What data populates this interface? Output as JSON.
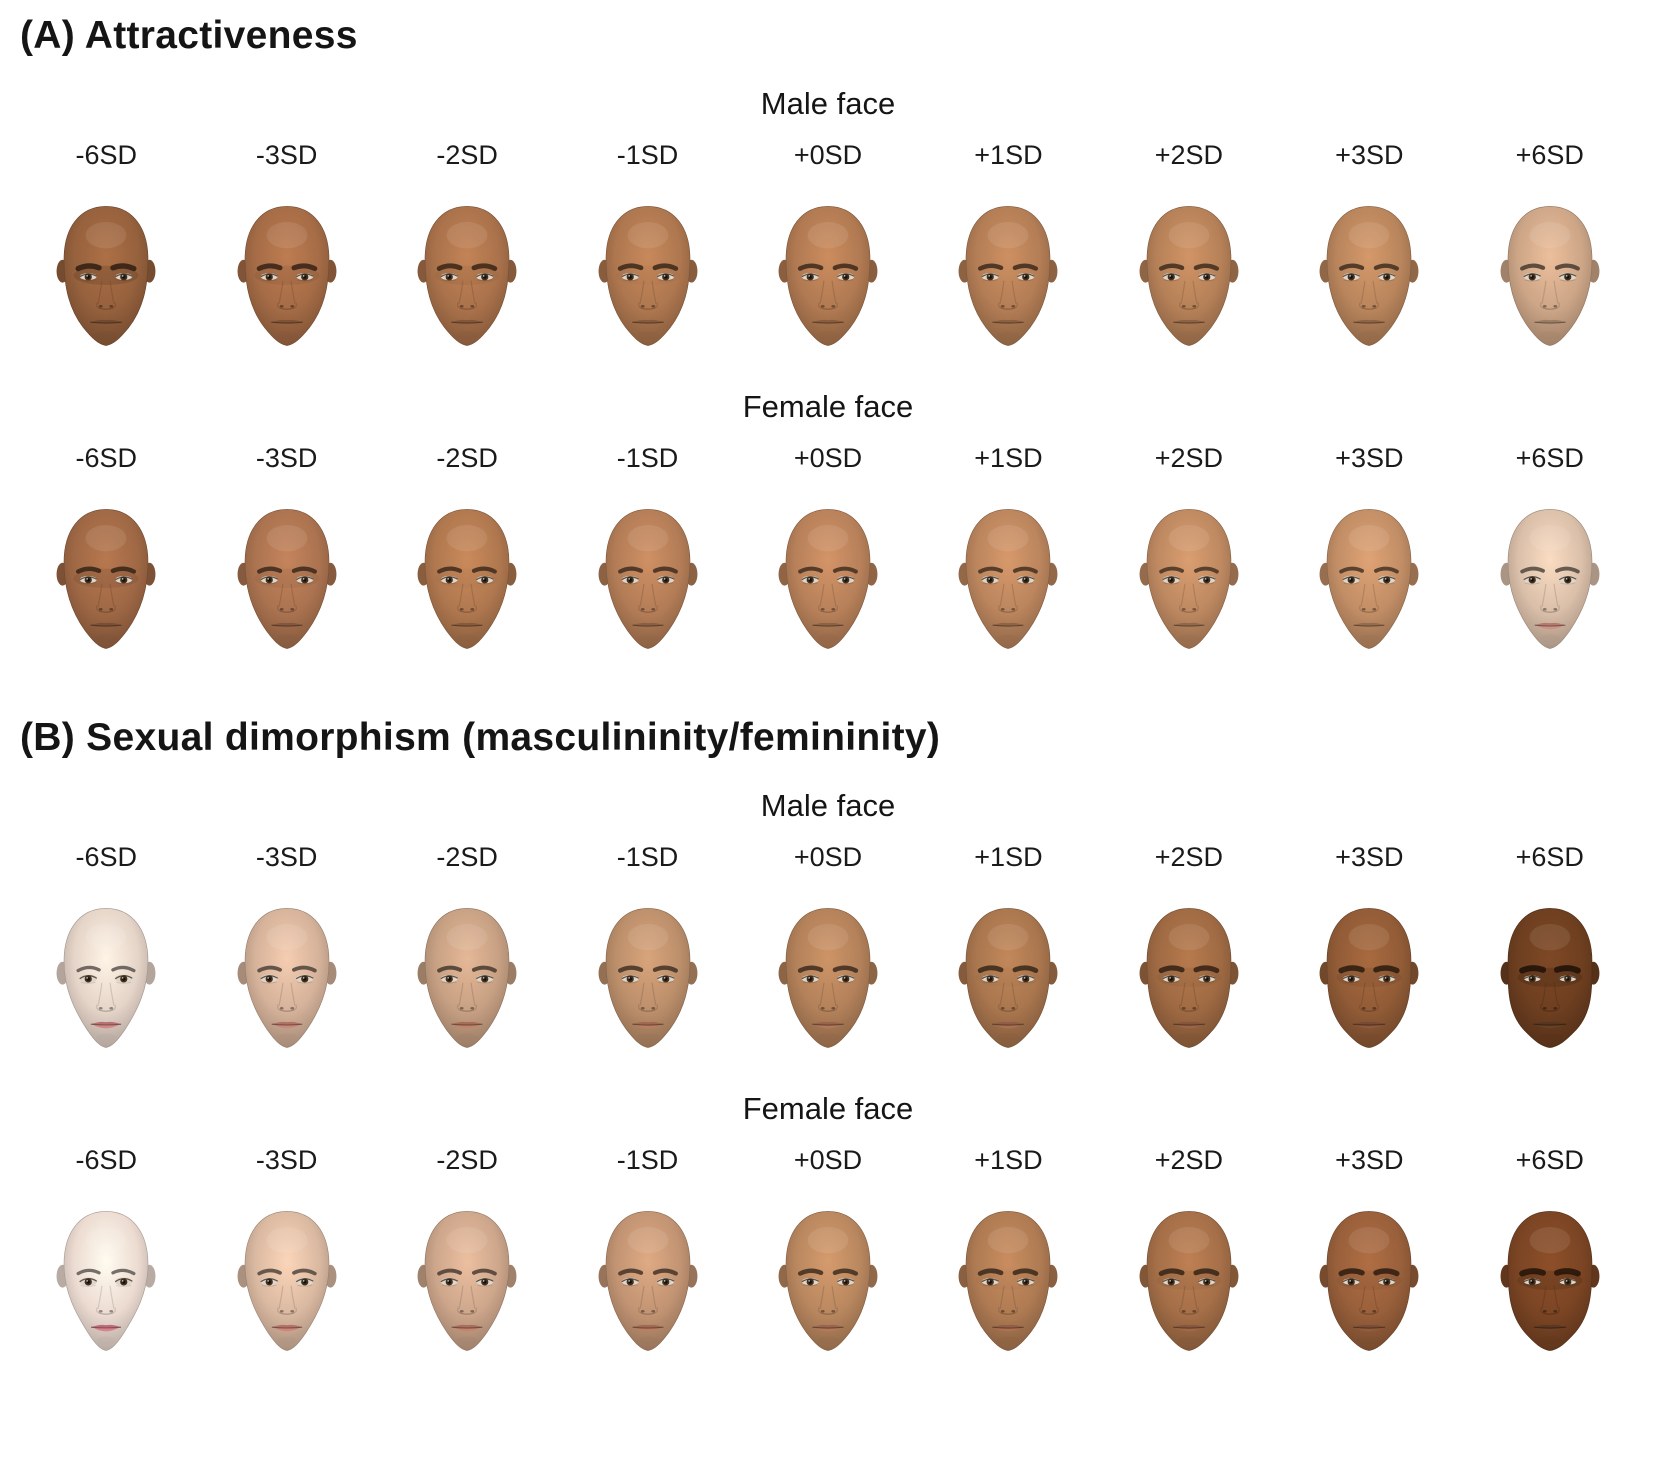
{
  "sd_labels": [
    "-6SD",
    "-3SD",
    "-2SD",
    "-1SD",
    "+0SD",
    "+1SD",
    "+2SD",
    "+3SD",
    "+6SD"
  ],
  "panels": [
    {
      "title": "(A) Attractiveness",
      "groups": [
        {
          "title": "Male face",
          "faces": [
            {
              "skin": "#96613d",
              "jaw": 1.05,
              "brow": 1.35,
              "eye": 0.95,
              "gloom": 0.3
            },
            {
              "skin": "#a56c46",
              "jaw": 1.04,
              "brow": 1.2,
              "eye": 0.97,
              "gloom": 0.15
            },
            {
              "skin": "#aa724b",
              "jaw": 1.04,
              "brow": 1.15,
              "eye": 0.98,
              "gloom": 0.1
            },
            {
              "skin": "#ae774f",
              "jaw": 1.03,
              "brow": 1.1,
              "eye": 1.0,
              "gloom": 0.05
            },
            {
              "skin": "#b17a52",
              "jaw": 1.03,
              "brow": 1.05,
              "eye": 1.0,
              "gloom": 0
            },
            {
              "skin": "#b37d55",
              "jaw": 1.02,
              "brow": 1.0,
              "eye": 1.0,
              "gloom": 0
            },
            {
              "skin": "#b68158",
              "jaw": 1.02,
              "brow": 1.0,
              "eye": 1.02,
              "gloom": 0
            },
            {
              "skin": "#b9855c",
              "jaw": 1.01,
              "brow": 0.95,
              "eye": 1.03,
              "gloom": 0
            },
            {
              "skin": "#cda687",
              "jaw": 0.99,
              "brow": 0.9,
              "eye": 1.06,
              "gloom": 0
            }
          ]
        },
        {
          "title": "Female face",
          "faces": [
            {
              "skin": "#9f6845",
              "jaw": 0.97,
              "brow": 1.0,
              "eye": 1.0,
              "gloom": 0.2
            },
            {
              "skin": "#ab7350",
              "jaw": 0.96,
              "brow": 0.95,
              "eye": 1.02,
              "gloom": 0.1
            },
            {
              "skin": "#b0784f",
              "jaw": 0.96,
              "brow": 0.9,
              "eye": 1.03,
              "gloom": 0.05
            },
            {
              "skin": "#b47d57",
              "jaw": 0.95,
              "brow": 0.9,
              "eye": 1.04,
              "gloom": 0
            },
            {
              "skin": "#b8815a",
              "jaw": 0.95,
              "brow": 0.85,
              "eye": 1.05,
              "gloom": 0
            },
            {
              "skin": "#bb855d",
              "jaw": 0.94,
              "brow": 0.85,
              "eye": 1.05,
              "gloom": 0
            },
            {
              "skin": "#be8961",
              "jaw": 0.94,
              "brow": 0.8,
              "eye": 1.06,
              "gloom": 0
            },
            {
              "skin": "#c28e66",
              "jaw": 0.93,
              "brow": 0.8,
              "eye": 1.07,
              "gloom": 0
            },
            {
              "skin": "#dabfa9",
              "jaw": 0.92,
              "brow": 0.75,
              "eye": 1.1,
              "gloom": 0,
              "lip": "#c08379"
            }
          ]
        }
      ]
    },
    {
      "title": "(B) Sexual dimorphism (masculininity/femininity)",
      "groups": [
        {
          "title": "Male face",
          "faces": [
            {
              "skin": "#e5d4c8",
              "jaw": 0.88,
              "brow": 0.6,
              "eye": 1.15,
              "gloom": 0,
              "lip": "#c4797a"
            },
            {
              "skin": "#d5b29a",
              "jaw": 0.92,
              "brow": 0.75,
              "eye": 1.1,
              "gloom": 0,
              "lip": "#bb7b6e"
            },
            {
              "skin": "#c7a083",
              "jaw": 0.96,
              "brow": 0.85,
              "eye": 1.05,
              "gloom": 0,
              "lip": "#b3765e"
            },
            {
              "skin": "#bc8f6b",
              "jaw": 1.0,
              "brow": 0.95,
              "eye": 1.0,
              "gloom": 0,
              "lip": "#ab7158"
            },
            {
              "skin": "#b3815a",
              "jaw": 1.04,
              "brow": 1.05,
              "eye": 0.98,
              "gloom": 0,
              "lip": "#a46c52"
            },
            {
              "skin": "#a9764e",
              "jaw": 1.08,
              "brow": 1.15,
              "eye": 0.95,
              "gloom": 0.05,
              "lip": "#9c654a"
            },
            {
              "skin": "#9f6a43",
              "jaw": 1.12,
              "brow": 1.25,
              "eye": 0.92,
              "gloom": 0.1,
              "lip": "#8f5c40"
            },
            {
              "skin": "#925c37",
              "jaw": 1.16,
              "brow": 1.4,
              "eye": 0.9,
              "gloom": 0.15,
              "lip": "#815138"
            },
            {
              "skin": "#6e3f20",
              "jaw": 1.22,
              "brow": 1.6,
              "eye": 0.85,
              "gloom": 0.35,
              "lip": "#5e3a22"
            }
          ]
        },
        {
          "title": "Female face",
          "faces": [
            {
              "skin": "#ecdbd1",
              "jaw": 0.84,
              "brow": 0.55,
              "eye": 1.18,
              "gloom": 0,
              "lip": "#ca7480"
            },
            {
              "skin": "#dab9a1",
              "jaw": 0.88,
              "brow": 0.7,
              "eye": 1.12,
              "gloom": 0,
              "lip": "#c0796f"
            },
            {
              "skin": "#cda68b",
              "jaw": 0.92,
              "brow": 0.8,
              "eye": 1.08,
              "gloom": 0,
              "lip": "#b67663"
            },
            {
              "skin": "#c29473",
              "jaw": 0.96,
              "brow": 0.9,
              "eye": 1.03,
              "gloom": 0,
              "lip": "#ad7158"
            },
            {
              "skin": "#b9875f",
              "jaw": 1.0,
              "brow": 1.0,
              "eye": 1.0,
              "gloom": 0,
              "lip": "#a56d52"
            },
            {
              "skin": "#af7b53",
              "jaw": 1.04,
              "brow": 1.1,
              "eye": 0.96,
              "gloom": 0.05,
              "lip": "#9d664b"
            },
            {
              "skin": "#a56f48",
              "jaw": 1.08,
              "brow": 1.2,
              "eye": 0.93,
              "gloom": 0.1,
              "lip": "#925e42"
            },
            {
              "skin": "#99603b",
              "jaw": 1.12,
              "brow": 1.35,
              "eye": 0.9,
              "gloom": 0.12,
              "lip": "#845338"
            },
            {
              "skin": "#7b4524",
              "jaw": 1.16,
              "brow": 1.55,
              "eye": 0.86,
              "gloom": 0.3,
              "lip": "#633c24"
            }
          ]
        }
      ]
    }
  ]
}
